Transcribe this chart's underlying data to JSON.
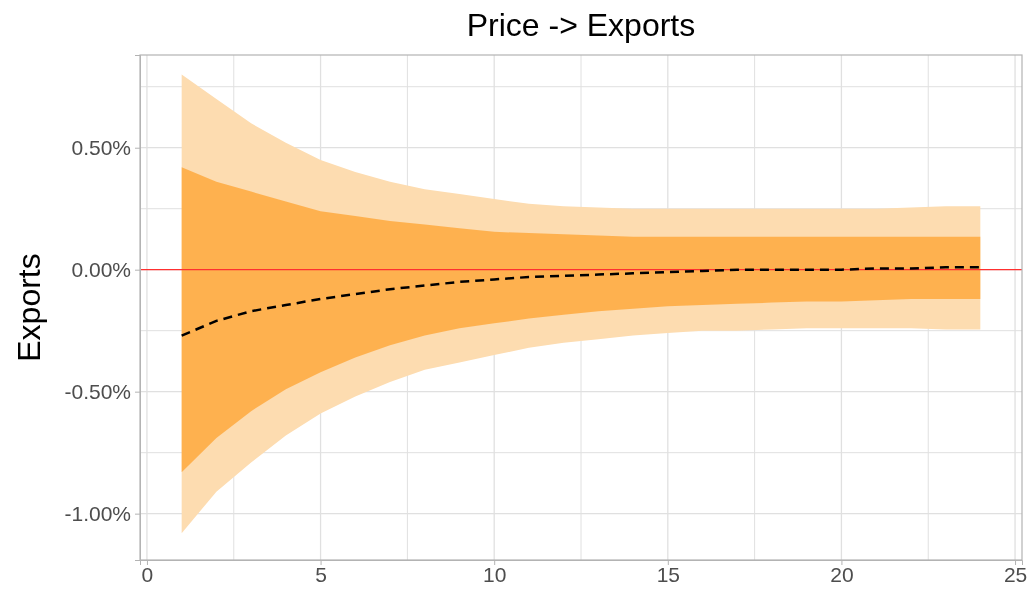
{
  "chart_data": {
    "type": "line",
    "title": "Price -> Exports",
    "ylabel": "Exports",
    "x": [
      1,
      2,
      3,
      4,
      5,
      6,
      7,
      8,
      9,
      10,
      11,
      12,
      13,
      14,
      15,
      16,
      17,
      18,
      19,
      20,
      21,
      22,
      23,
      24
    ],
    "series": [
      {
        "type": "area",
        "color": "#fddcb0",
        "values": [
          null,
          null,
          null,
          null,
          null,
          null,
          null,
          null,
          null,
          null,
          null,
          null,
          null,
          null,
          null,
          null,
          null,
          null,
          null,
          null,
          null,
          null,
          null,
          null
        ],
        "upper": [
          0.8,
          0.7,
          0.6,
          0.52,
          0.45,
          0.4,
          0.36,
          0.33,
          0.31,
          0.29,
          0.27,
          0.26,
          0.255,
          0.25,
          0.25,
          0.25,
          0.25,
          0.25,
          0.25,
          0.25,
          0.25,
          0.255,
          0.26,
          0.26
        ],
        "lower": [
          -1.08,
          -0.91,
          -0.79,
          -0.68,
          -0.59,
          -0.52,
          -0.46,
          -0.41,
          -0.38,
          -0.35,
          -0.32,
          -0.3,
          -0.285,
          -0.27,
          -0.26,
          -0.25,
          -0.25,
          -0.245,
          -0.24,
          -0.24,
          -0.24,
          -0.24,
          -0.245,
          -0.245
        ]
      },
      {
        "color": "#000000",
        "line_style": "dashed",
        "values": [
          -0.27,
          -0.21,
          -0.17,
          -0.145,
          -0.12,
          -0.1,
          -0.08,
          -0.065,
          -0.05,
          -0.04,
          -0.03,
          -0.025,
          -0.02,
          -0.015,
          -0.01,
          -0.005,
          0,
          0,
          0,
          0,
          0.005,
          0.005,
          0.01,
          0.01
        ],
        "upper": [
          0.42,
          0.36,
          0.32,
          0.28,
          0.24,
          0.22,
          0.2,
          0.185,
          0.17,
          0.155,
          0.15,
          0.145,
          0.14,
          0.135,
          0.135,
          0.135,
          0.135,
          0.135,
          0.135,
          0.135,
          0.135,
          0.135,
          0.135,
          0.135
        ],
        "lower": [
          -0.83,
          -0.69,
          -0.58,
          -0.49,
          -0.42,
          -0.36,
          -0.31,
          -0.27,
          -0.24,
          -0.22,
          -0.2,
          -0.185,
          -0.17,
          -0.16,
          -0.15,
          -0.145,
          -0.14,
          -0.135,
          -0.13,
          -0.13,
          -0.125,
          -0.12,
          -0.12,
          -0.12
        ]
      }
    ],
    "xlim": [
      -0.2,
      25.2
    ],
    "xticks": [
      0,
      5,
      10,
      15,
      20,
      25,
      {
        "value": 2.5,
        "label": null
      },
      {
        "value": 7.5,
        "label": null
      },
      {
        "value": 12.5,
        "label": null
      },
      {
        "value": 17.5,
        "label": null
      },
      {
        "value": 22.5,
        "label": null
      }
    ],
    "ylim": [
      -1.19,
      0.88
    ],
    "yticks": [
      {
        "value": -1,
        "label": "-1.00%"
      },
      {
        "value": -0.5,
        "label": "-0.50%"
      },
      {
        "value": 0,
        "label": "0.00%"
      },
      {
        "value": 0.5,
        "label": "0.50%"
      },
      {
        "value": -0.75,
        "label": null
      },
      {
        "value": -0.25,
        "label": null
      },
      {
        "value": 0.25,
        "label": null
      },
      {
        "value": 0.75,
        "label": null
      }
    ],
    "grid": true,
    "ref_lines": [
      {
        "axis": "y",
        "value": 0,
        "color": "#ff3030"
      }
    ]
  }
}
